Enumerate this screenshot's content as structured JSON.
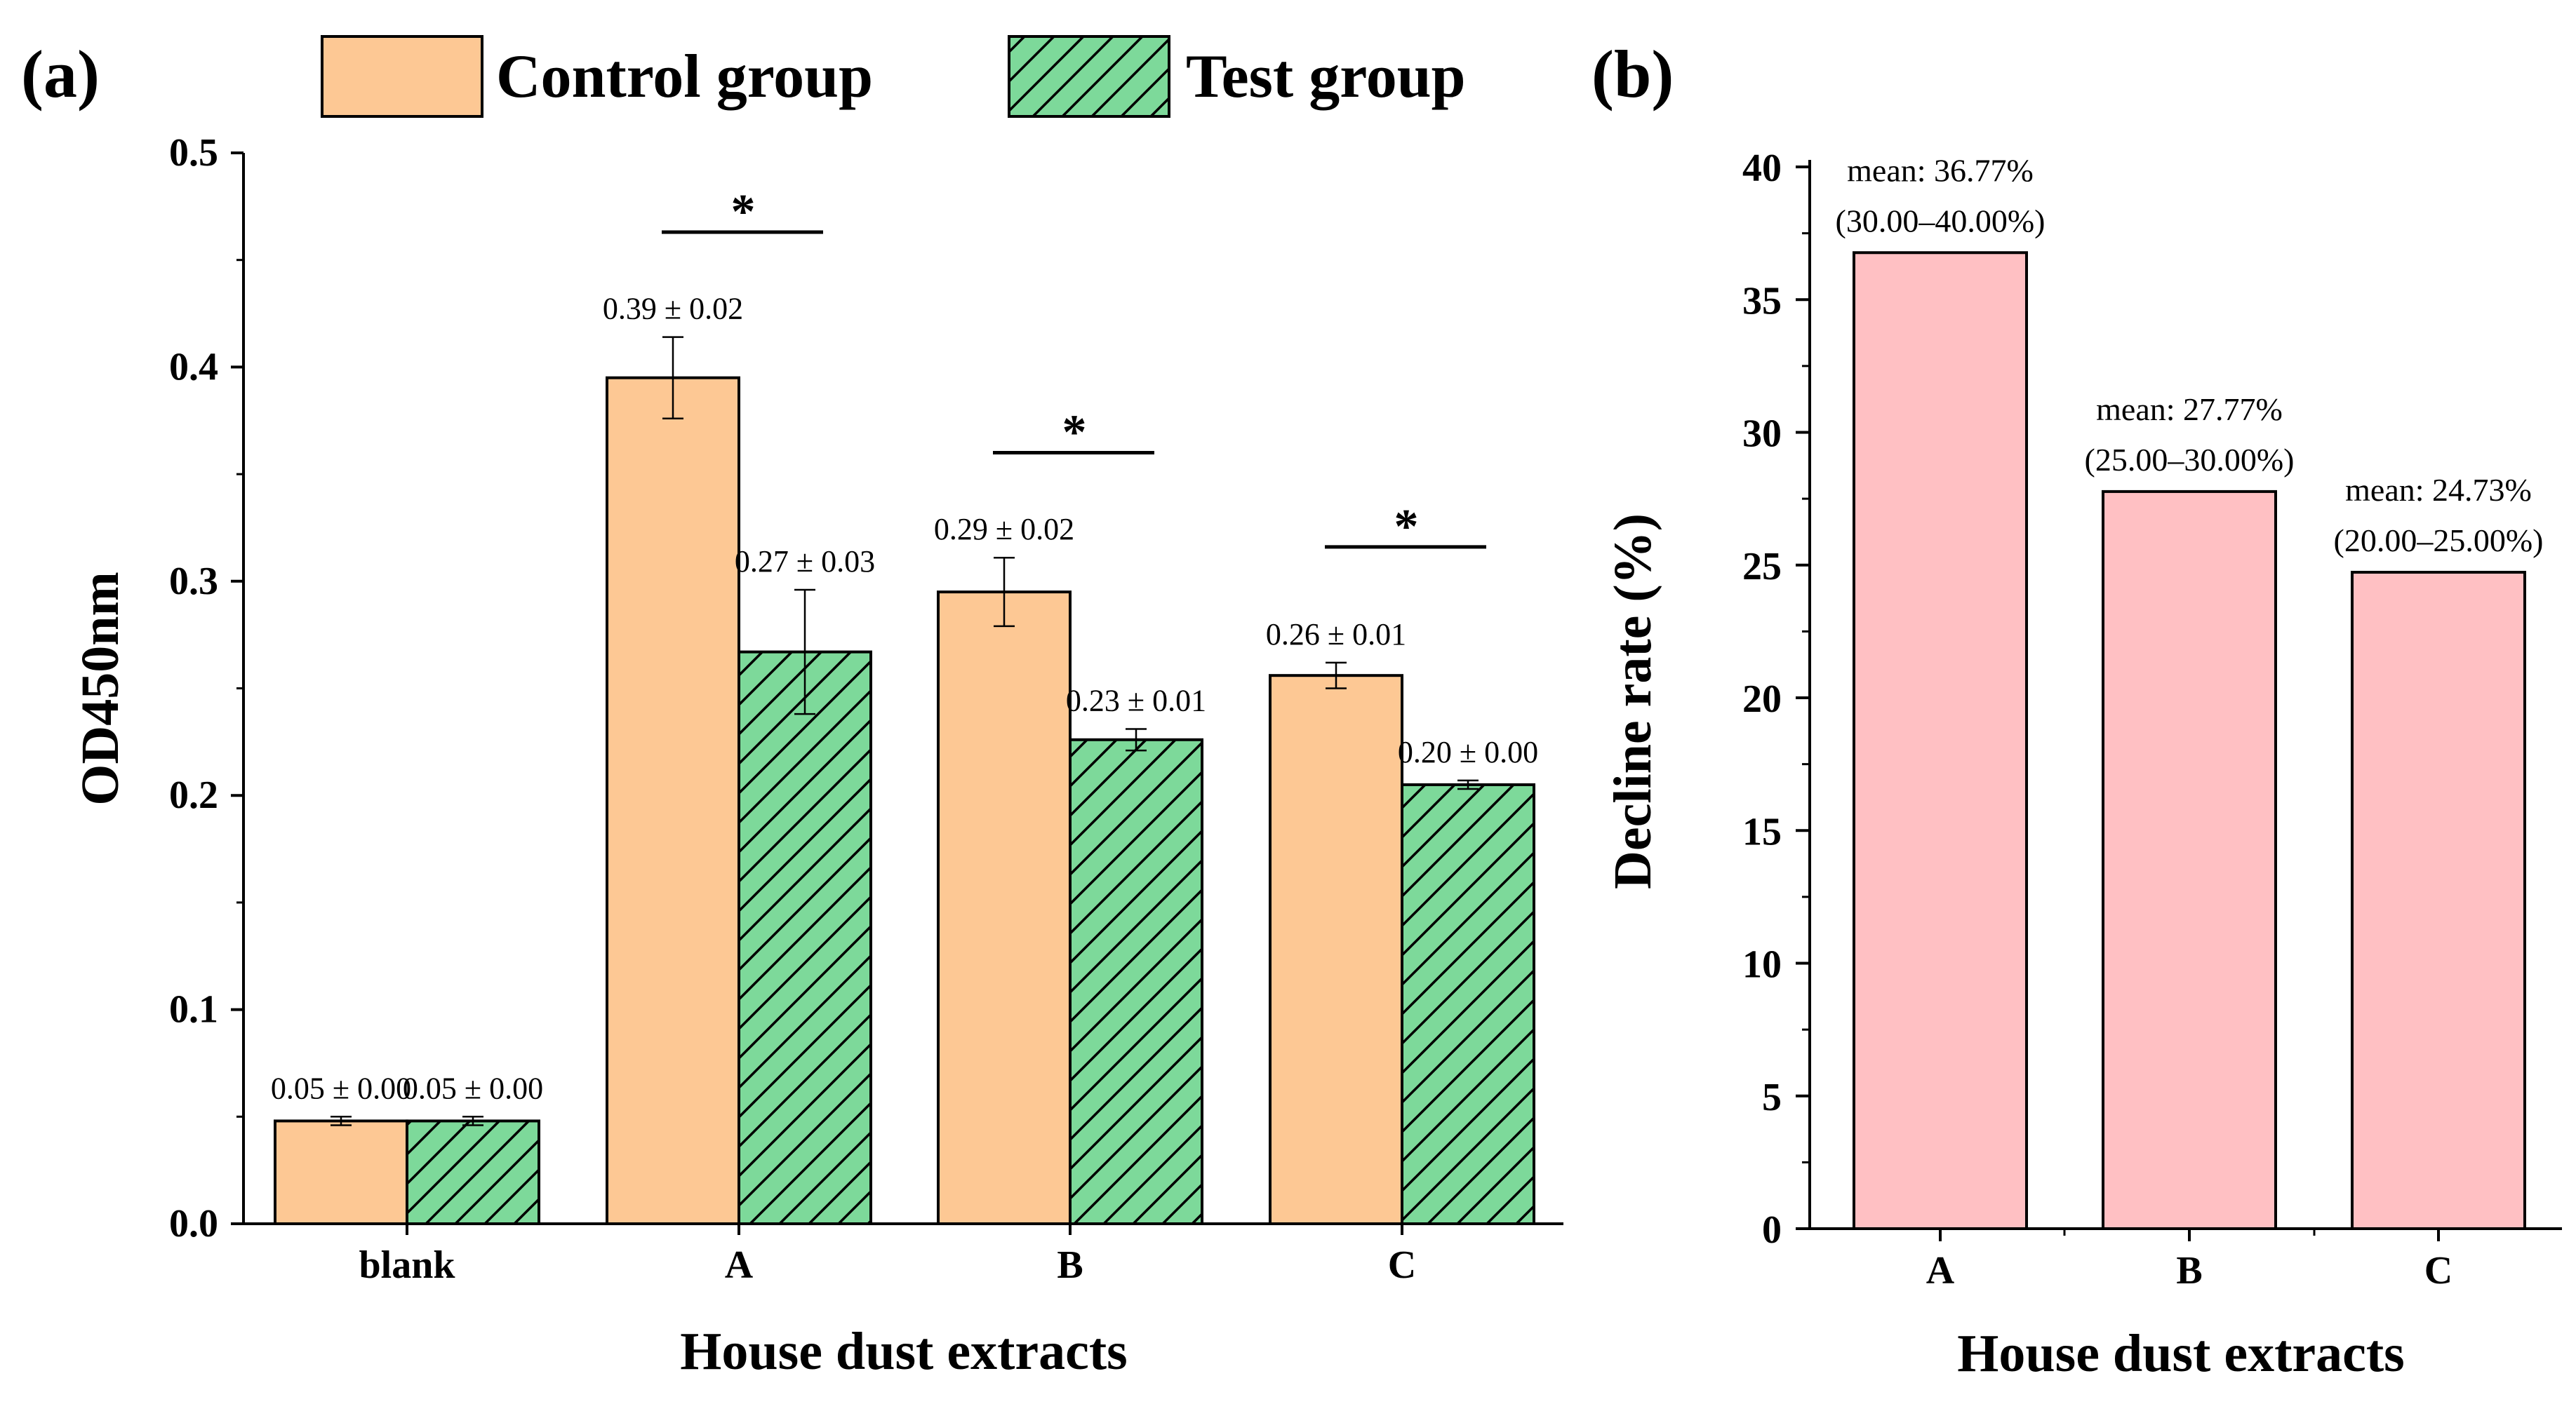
{
  "panels": {
    "a": {
      "label": "(a)"
    },
    "b": {
      "label": "(b)"
    }
  },
  "colors": {
    "control": "#FDC894",
    "test": "#7DD99A",
    "decline": "#FFC0C3",
    "axis": "#000000"
  },
  "chart_data": [
    {
      "id": "a",
      "type": "bar",
      "title": "",
      "xlabel": "House dust extracts",
      "ylabel": "OD450nm",
      "ylim": [
        0,
        0.5
      ],
      "yticks": [
        0.0,
        0.1,
        0.2,
        0.3,
        0.4,
        0.5
      ],
      "ytick_labels": [
        "0.0",
        "0.1",
        "0.2",
        "0.3",
        "0.4",
        "0.5"
      ],
      "categories": [
        "blank",
        "A",
        "B",
        "C"
      ],
      "legend_position": "top",
      "series": [
        {
          "name": "Control group",
          "pattern": "solid",
          "values": [
            0.048,
            0.395,
            0.295,
            0.256
          ],
          "errors": [
            0.002,
            0.019,
            0.016,
            0.006
          ],
          "labels": [
            "0.05 ± 0.00",
            "0.39 ± 0.02",
            "0.29 ± 0.02",
            "0.26 ± 0.01"
          ]
        },
        {
          "name": "Test group",
          "pattern": "hatched",
          "values": [
            0.048,
            0.267,
            0.226,
            0.205
          ],
          "errors": [
            0.002,
            0.029,
            0.005,
            0.002
          ],
          "labels": [
            "0.05 ± 0.00",
            "0.27 ± 0.03",
            "0.23 ± 0.01",
            "0.20 ± 0.00"
          ]
        }
      ],
      "significance": [
        {
          "category": "A",
          "symbol": "*",
          "level": 0.463
        },
        {
          "category": "B",
          "symbol": "*",
          "level": 0.36
        },
        {
          "category": "C",
          "symbol": "*",
          "level": 0.316
        }
      ]
    },
    {
      "id": "b",
      "type": "bar",
      "title": "",
      "xlabel": "House dust extracts",
      "ylabel": "Decline rate (%)",
      "ylim": [
        0,
        40
      ],
      "yticks": [
        0,
        5,
        10,
        15,
        20,
        25,
        30,
        35,
        40
      ],
      "ytick_labels": [
        "0",
        "5",
        "10",
        "15",
        "20",
        "25",
        "30",
        "35",
        "40"
      ],
      "categories": [
        "A",
        "B",
        "C"
      ],
      "series": [
        {
          "name": "Decline rate",
          "values": [
            36.77,
            27.77,
            24.73
          ],
          "annotations": [
            [
              "mean: 36.77%",
              "(30.00–40.00%)"
            ],
            [
              "mean: 27.77%",
              "(25.00–30.00%)"
            ],
            [
              "mean: 24.73%",
              "(20.00–25.00%)"
            ]
          ]
        }
      ]
    }
  ]
}
